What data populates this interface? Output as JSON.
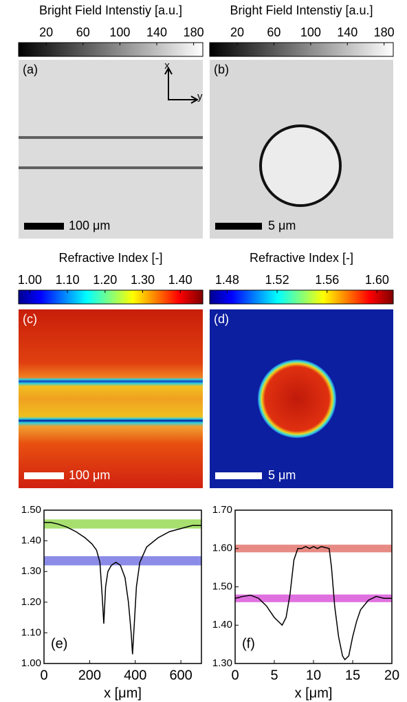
{
  "panels": [
    {
      "label": "(a)",
      "colorbar": {
        "title": "Bright Field Intenstiy [a.u.]",
        "lim": [
          -10,
          190
        ],
        "ticks": [
          20,
          60,
          100,
          140,
          180
        ]
      },
      "scalebar": "100 μm",
      "axis_x": "x",
      "axis_y": "y"
    },
    {
      "label": "(b)",
      "colorbar": {
        "title": "Bright Field Intenstiy [a.u.]",
        "lim": [
          -10,
          190
        ],
        "ticks": [
          20,
          60,
          100,
          140,
          180
        ]
      },
      "scalebar": "5 μm"
    },
    {
      "label": "(c)",
      "colorbar": {
        "title": "Refractive Index [-]",
        "lim": [
          0.97,
          1.46
        ],
        "ticks": [
          {
            "value": 1,
            "label": "1.00"
          },
          {
            "value": 1.1,
            "label": "1.10"
          },
          {
            "value": 1.2,
            "label": "1.20"
          },
          {
            "value": 1.3,
            "label": "1.30"
          },
          {
            "value": 1.4,
            "label": "1.40"
          }
        ]
      },
      "scalebar": "100 μm"
    },
    {
      "label": "(d)",
      "colorbar": {
        "title": "Refractive Index [-]",
        "lim": [
          1.466,
          1.613
        ],
        "ticks": [
          1.48,
          1.52,
          1.56,
          {
            "value": 1.6,
            "label": "1.60"
          }
        ]
      },
      "scalebar": "5 μm"
    }
  ],
  "chart_data": [
    {
      "type": "line",
      "annotation": "(e)",
      "xlabel": "x [μm]",
      "color": "#000000",
      "x": [
        0,
        30,
        60,
        100,
        140,
        180,
        210,
        230,
        245,
        255,
        262,
        270,
        280,
        295,
        315,
        335,
        355,
        370,
        382,
        388,
        395,
        405,
        420,
        450,
        500,
        550,
        600,
        650,
        690
      ],
      "values": [
        1.46,
        1.46,
        1.455,
        1.445,
        1.43,
        1.41,
        1.39,
        1.37,
        1.33,
        1.22,
        1.13,
        1.25,
        1.3,
        1.32,
        1.33,
        1.32,
        1.28,
        1.2,
        1.1,
        1.03,
        1.12,
        1.25,
        1.33,
        1.38,
        1.41,
        1.43,
        1.44,
        1.45,
        1.45
      ],
      "bands": [
        {
          "color": "#a8e070",
          "range": [
            1.44,
            1.47
          ]
        },
        {
          "color": "#8c8ce8",
          "range": [
            1.32,
            1.35
          ]
        }
      ],
      "xlim": [
        0,
        690
      ],
      "xticks": [
        0,
        200,
        400,
        600
      ],
      "ylim": [
        1,
        1.5
      ],
      "yticks": [
        {
          "value": 1,
          "label": "1.00"
        },
        {
          "value": 1.1,
          "label": "1.10"
        },
        {
          "value": 1.2,
          "label": "1.20"
        },
        {
          "value": 1.3,
          "label": "1.30"
        },
        {
          "value": 1.4,
          "label": "1.40"
        },
        {
          "value": 1.5,
          "label": "1.50"
        }
      ]
    },
    {
      "type": "line",
      "annotation": "(f)",
      "xlabel": "x [μm]",
      "color": "#000000",
      "x": [
        0,
        1,
        2,
        3,
        4,
        5,
        6,
        6.5,
        7,
        7.5,
        8,
        8.5,
        9,
        9.5,
        10,
        10.5,
        11,
        12,
        12.3,
        12.7,
        13.2,
        13.7,
        14,
        14.5,
        15,
        15.5,
        16,
        17,
        18,
        19,
        20
      ],
      "values": [
        1.47,
        1.475,
        1.478,
        1.47,
        1.45,
        1.42,
        1.4,
        1.42,
        1.48,
        1.57,
        1.6,
        1.6,
        1.605,
        1.6,
        1.605,
        1.6,
        1.605,
        1.6,
        1.55,
        1.45,
        1.37,
        1.32,
        1.31,
        1.32,
        1.37,
        1.41,
        1.44,
        1.465,
        1.475,
        1.47,
        1.47
      ],
      "bands": [
        {
          "color": "#e88a84",
          "range": [
            1.59,
            1.61
          ]
        },
        {
          "color": "#e070e0",
          "range": [
            1.46,
            1.48
          ]
        }
      ],
      "xlim": [
        0,
        20
      ],
      "xticks": [
        0,
        5,
        10,
        15,
        20
      ],
      "ylim": [
        1.3,
        1.7
      ],
      "yticks": [
        {
          "value": 1.3,
          "label": "1.30"
        },
        {
          "value": 1.4,
          "label": "1.40"
        },
        {
          "value": 1.5,
          "label": "1.50"
        },
        {
          "value": 1.6,
          "label": "1.60"
        },
        {
          "value": 1.7,
          "label": "1.70"
        }
      ]
    }
  ]
}
